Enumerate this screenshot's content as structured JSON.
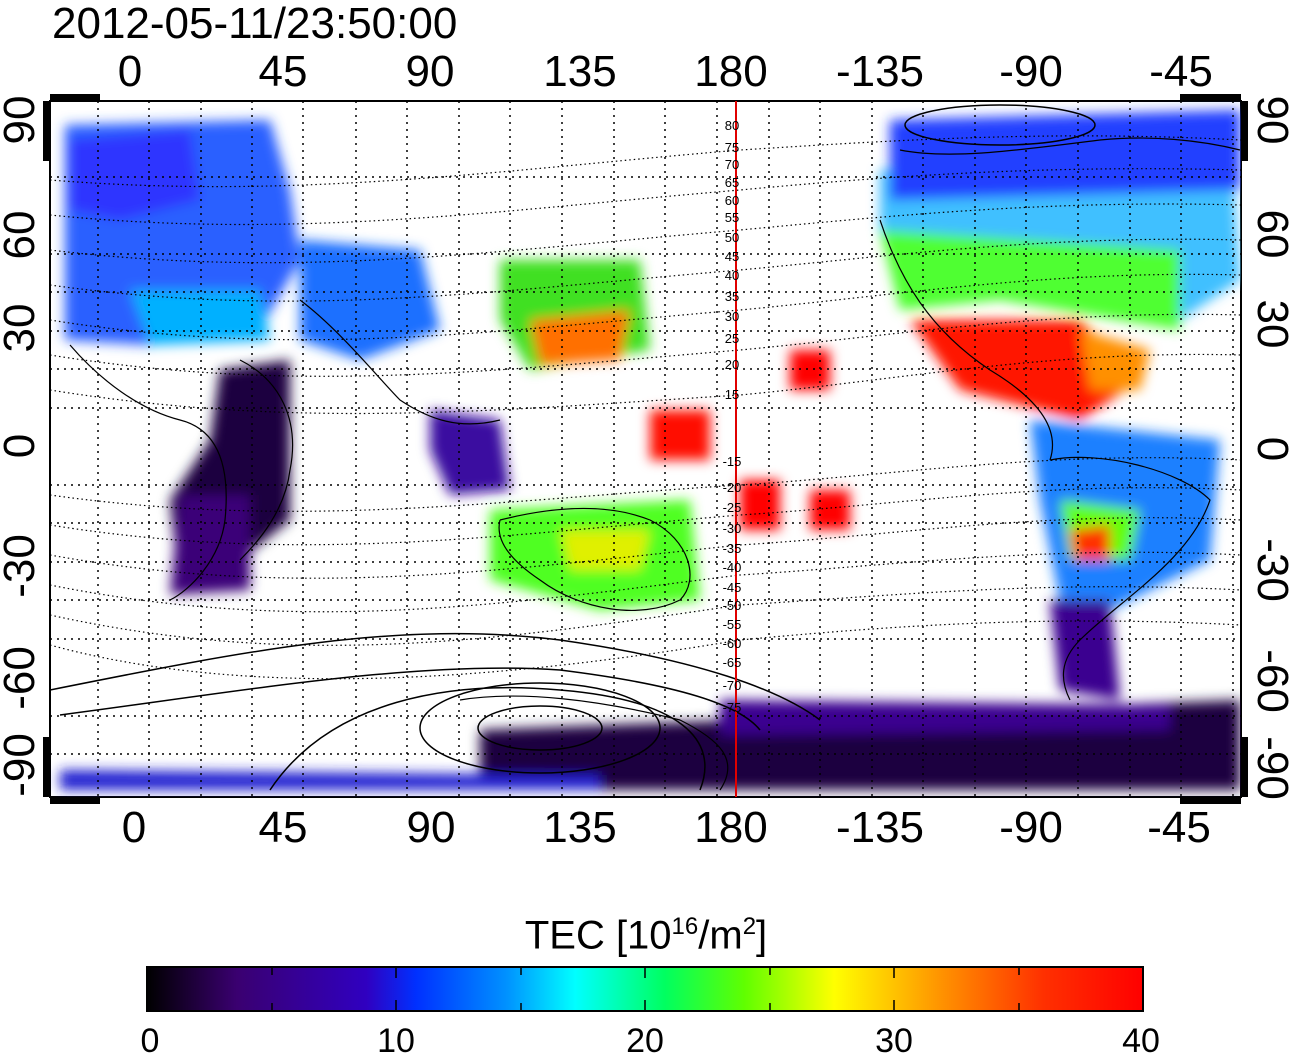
{
  "title": "2012-05-11/23:50:00",
  "map": {
    "x_ticks": [
      "0",
      "45",
      "90",
      "135",
      "180",
      "-135",
      "-90",
      "-45"
    ],
    "y_ticks_left": [
      "90",
      "60",
      "30",
      "0",
      "-30",
      "-60",
      "-90"
    ],
    "y_ticks_right": [
      "90",
      "60",
      "30",
      "0",
      "-30",
      "-60",
      "-90"
    ],
    "mag_lat_labels": [
      "80",
      "75",
      "70",
      "65",
      "60",
      "55",
      "50",
      "45",
      "40",
      "35",
      "30",
      "25",
      "20",
      "15",
      "-15",
      "-20",
      "-25",
      "-30",
      "-35",
      "-40",
      "-45",
      "-50",
      "-55",
      "-60",
      "-65",
      "-70",
      "-75"
    ],
    "terminator_color": "#e00000"
  },
  "colorbar": {
    "title_prefix": "TEC  [10",
    "title_sup1": "16",
    "title_mid": "/m",
    "title_sup2": "2",
    "title_suffix": "]",
    "ticks": [
      "0",
      "10",
      "20",
      "30",
      "40"
    ],
    "range": [
      0,
      40
    ],
    "colors": [
      "#000000",
      "#3a0070",
      "#2a00c8",
      "#0040ff",
      "#00a0ff",
      "#00ffff",
      "#00ff60",
      "#40ff00",
      "#ffff00",
      "#ffa000",
      "#ff3000",
      "#ff0000"
    ]
  }
}
